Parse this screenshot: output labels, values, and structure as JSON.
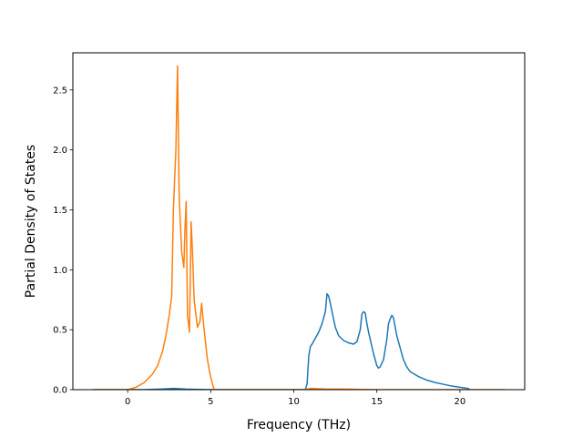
{
  "chart_data": {
    "type": "line",
    "title": "",
    "xlabel": "Frequency (THz)",
    "ylabel": "Partial Density of States",
    "xlim": [
      -3.3,
      23.9
    ],
    "ylim": [
      0,
      2.81
    ],
    "xticks": [
      0,
      5,
      10,
      15,
      20
    ],
    "xtick_labels": [
      "0",
      "5",
      "10",
      "15",
      "20"
    ],
    "yticks": [
      0,
      0.5,
      1.0,
      1.5,
      2.0,
      2.5
    ],
    "ytick_labels": [
      "0.0",
      "0.5",
      "1.0",
      "1.5",
      "2.0",
      "2.5"
    ],
    "grid": false,
    "legend": false,
    "series": [
      {
        "color": "#1f77b4",
        "x": [
          -2.1,
          1.0,
          2.0,
          2.8,
          3.5,
          4.0,
          5.0,
          10.7,
          10.8,
          10.9,
          11.0,
          11.1,
          11.3,
          11.5,
          11.7,
          11.9,
          12.0,
          12.1,
          12.2,
          12.3,
          12.5,
          12.7,
          13.0,
          13.3,
          13.6,
          13.8,
          14.0,
          14.1,
          14.2,
          14.3,
          14.4,
          14.5,
          14.6,
          14.8,
          15.0,
          15.1,
          15.2,
          15.4,
          15.6,
          15.7,
          15.8,
          15.9,
          16.0,
          16.2,
          16.4,
          16.6,
          16.8,
          17.0,
          17.5,
          18.0,
          18.5,
          19.0,
          19.5,
          20.0,
          20.5,
          20.6
        ],
        "y": [
          0,
          0,
          0.005,
          0.01,
          0.005,
          0.003,
          0,
          0,
          0.05,
          0.28,
          0.36,
          0.38,
          0.43,
          0.48,
          0.55,
          0.65,
          0.8,
          0.78,
          0.72,
          0.65,
          0.52,
          0.45,
          0.41,
          0.39,
          0.38,
          0.4,
          0.5,
          0.63,
          0.65,
          0.64,
          0.55,
          0.48,
          0.42,
          0.3,
          0.2,
          0.18,
          0.19,
          0.25,
          0.42,
          0.55,
          0.59,
          0.62,
          0.6,
          0.45,
          0.35,
          0.25,
          0.19,
          0.15,
          0.11,
          0.08,
          0.06,
          0.045,
          0.03,
          0.02,
          0.01,
          0
        ]
      },
      {
        "color": "#ff7f0e",
        "x": [
          -2.1,
          0.0,
          0.5,
          1.0,
          1.5,
          1.8,
          2.1,
          2.3,
          2.5,
          2.65,
          2.75,
          2.9,
          3.0,
          3.1,
          3.25,
          3.38,
          3.45,
          3.52,
          3.6,
          3.72,
          3.82,
          3.9,
          4.0,
          4.2,
          4.35,
          4.45,
          4.6,
          4.8,
          5.0,
          5.2,
          6.0,
          8.0,
          10.0,
          10.7,
          11.0,
          12.0,
          13.0,
          14.0,
          15.0,
          16.0,
          17.0,
          18.0,
          19.0,
          20.0,
          21.0,
          22.7
        ],
        "y": [
          0,
          0,
          0.02,
          0.06,
          0.13,
          0.2,
          0.32,
          0.45,
          0.62,
          0.78,
          1.5,
          2.0,
          2.7,
          1.6,
          1.15,
          1.02,
          1.35,
          1.57,
          0.62,
          0.48,
          1.4,
          1.15,
          0.75,
          0.52,
          0.57,
          0.72,
          0.5,
          0.25,
          0.1,
          0,
          0,
          0,
          0,
          0,
          0.01,
          0.005,
          0.005,
          0.002,
          0,
          0,
          0,
          0,
          0,
          0,
          0,
          0
        ]
      }
    ]
  }
}
